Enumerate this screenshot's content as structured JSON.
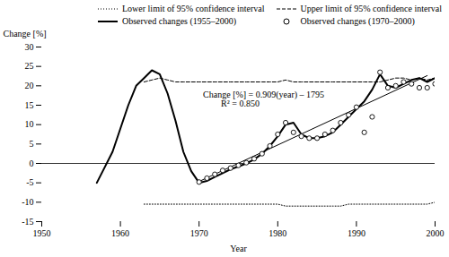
{
  "chart_data": {
    "type": "line",
    "xlabel": "Year",
    "ylabel": "Change [%]",
    "xlim": [
      1950,
      2000
    ],
    "ylim": [
      -15,
      30
    ],
    "xticks": [
      1950,
      1960,
      1970,
      1980,
      1990,
      2000
    ],
    "yticks": [
      -15,
      -10,
      -5,
      0,
      5,
      10,
      15,
      20,
      25,
      30
    ],
    "legend": "upper right",
    "hlines": [
      0
    ],
    "annotations": [
      {
        "text": "Change [%] = 0.909(year) – 1795\n        R² = 0.850",
        "x": 1970.5,
        "y": 18.5
      }
    ],
    "series": [
      {
        "name": "Lower limit of 95% confidence interval",
        "type": "line",
        "line_style": "dotted",
        "color": "#000000",
        "x": [
          1963,
          1964,
          1965,
          1966,
          1967,
          1968,
          1969,
          1970,
          1971,
          1972,
          1973,
          1974,
          1975,
          1976,
          1977,
          1978,
          1979,
          1980,
          1981,
          1982,
          1983,
          1984,
          1985,
          1986,
          1987,
          1988,
          1989,
          1990,
          1991,
          1992,
          1993,
          1994,
          1995,
          1996,
          1997,
          1998,
          1999,
          2000
        ],
        "values": [
          -10.5,
          -10.5,
          -10.5,
          -10.5,
          -10.5,
          -10.5,
          -10.5,
          -10.5,
          -10.5,
          -10.5,
          -10.5,
          -10.5,
          -10.5,
          -10.5,
          -10.5,
          -10.5,
          -10.5,
          -10.5,
          -11,
          -11,
          -11,
          -11,
          -11,
          -11,
          -11,
          -11,
          -10.5,
          -10.5,
          -10.5,
          -10.5,
          -10.5,
          -10.5,
          -10.5,
          -10.5,
          -10.5,
          -10.5,
          -10.5,
          -10
        ]
      },
      {
        "name": "Upper limit of 95% confidence interval",
        "type": "line",
        "line_style": "dashed",
        "color": "#000000",
        "x": [
          1963,
          1964,
          1965,
          1966,
          1967,
          1968,
          1969,
          1970,
          1971,
          1972,
          1973,
          1974,
          1975,
          1976,
          1977,
          1978,
          1979,
          1980,
          1981,
          1982,
          1983,
          1984,
          1985,
          1986,
          1987,
          1988,
          1989,
          1990,
          1991,
          1992,
          1993,
          1994,
          1995,
          1996,
          1997,
          1998,
          1999,
          2000
        ],
        "values": [
          21,
          21.5,
          22,
          21.5,
          21,
          21,
          21,
          21,
          21,
          21,
          21,
          21,
          21,
          21,
          21,
          21,
          21,
          21,
          21.5,
          21,
          21,
          21,
          21,
          21,
          21,
          21,
          21,
          21,
          21,
          21,
          21,
          21.5,
          22,
          22,
          21.5,
          22,
          21.5,
          22
        ]
      },
      {
        "name": "Observed changes (1955–2000)",
        "type": "line",
        "line_style": "solid",
        "color": "#000000",
        "x": [
          1957,
          1958,
          1959,
          1960,
          1961,
          1962,
          1963,
          1964,
          1965,
          1966,
          1967,
          1968,
          1969,
          1970,
          1971,
          1972,
          1973,
          1974,
          1975,
          1976,
          1977,
          1978,
          1979,
          1980,
          1981,
          1982,
          1983,
          1984,
          1985,
          1986,
          1987,
          1988,
          1989,
          1990,
          1991,
          1992,
          1993,
          1994,
          1995,
          1996,
          1997,
          1998,
          1999,
          2000
        ],
        "values": [
          -5,
          -1,
          3,
          9,
          15,
          20,
          22,
          24,
          23,
          18,
          11,
          3,
          -2,
          -5,
          -4.5,
          -3.5,
          -2.5,
          -1.5,
          -0.8,
          0,
          1,
          2.5,
          4.5,
          7,
          10,
          10.5,
          7.5,
          6.5,
          6.5,
          7,
          8,
          10,
          12,
          14,
          16,
          19,
          23,
          20,
          19.5,
          20.5,
          21.5,
          22,
          21,
          22
        ]
      },
      {
        "type": "line",
        "line_style": "solid",
        "color": "#000000",
        "x": [
          1970,
          1999
        ],
        "values": [
          -4.655,
          22.626
        ]
      },
      {
        "name": "Observed changes (1970–2000)",
        "type": "scatter",
        "marker": "o",
        "color": "#000000",
        "x": [
          1970,
          1971,
          1972,
          1973,
          1974,
          1975,
          1976,
          1977,
          1978,
          1979,
          1980,
          1981,
          1982,
          1983,
          1984,
          1985,
          1986,
          1987,
          1988,
          1989,
          1990,
          1991,
          1992,
          1993,
          1994,
          1995,
          1996,
          1997,
          1998,
          1999,
          2000
        ],
        "values": [
          -4.8,
          -3.8,
          -2.8,
          -1.8,
          -1.2,
          -0.5,
          0.2,
          1.2,
          2.5,
          4.5,
          7.5,
          10.5,
          8,
          7,
          6.5,
          6.5,
          7.5,
          8.5,
          10.5,
          12.5,
          14.5,
          8,
          12,
          23.5,
          19.5,
          20,
          21,
          20.5,
          19.5,
          19.5,
          20.5
        ]
      }
    ]
  }
}
